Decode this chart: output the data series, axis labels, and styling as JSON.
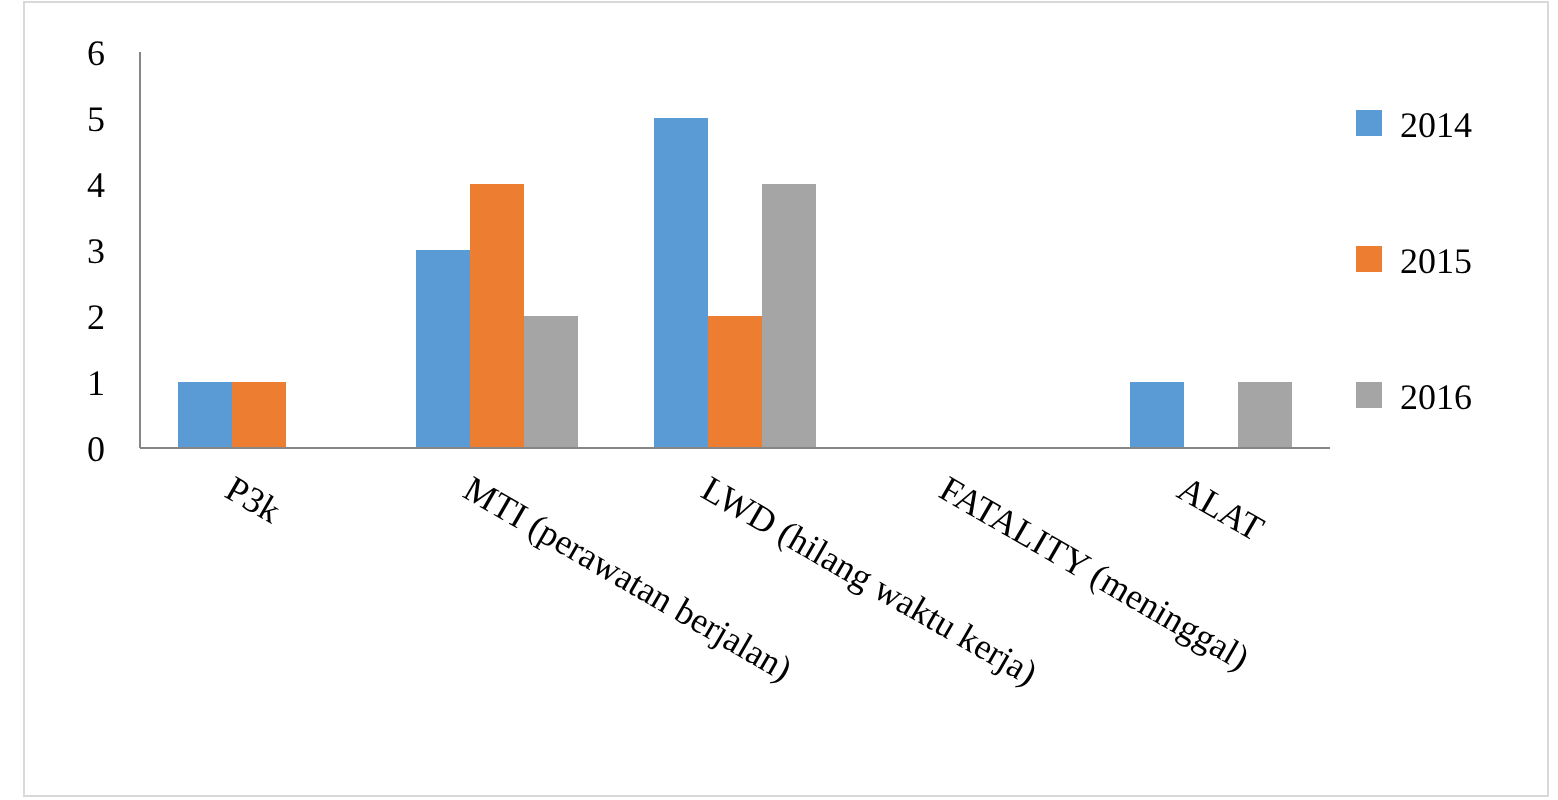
{
  "chart_data": {
    "type": "bar",
    "categories": [
      "P3k",
      "MTI (perawatan berjalan)",
      "LWD (hilang waktu kerja)",
      "FATALITY (meninggal)",
      "ALAT"
    ],
    "series": [
      {
        "name": "2014",
        "color": "#5b9bd5",
        "values": [
          1,
          3,
          5,
          0,
          1
        ]
      },
      {
        "name": "2015",
        "color": "#ed7d31",
        "values": [
          1,
          4,
          2,
          0,
          0
        ]
      },
      {
        "name": "2016",
        "color": "#a5a5a5",
        "values": [
          0,
          2,
          4,
          0,
          1
        ]
      }
    ],
    "ylim": [
      0,
      6
    ],
    "yticks": [
      0,
      1,
      2,
      3,
      4,
      5,
      6
    ],
    "grid": false,
    "legend": "right"
  }
}
